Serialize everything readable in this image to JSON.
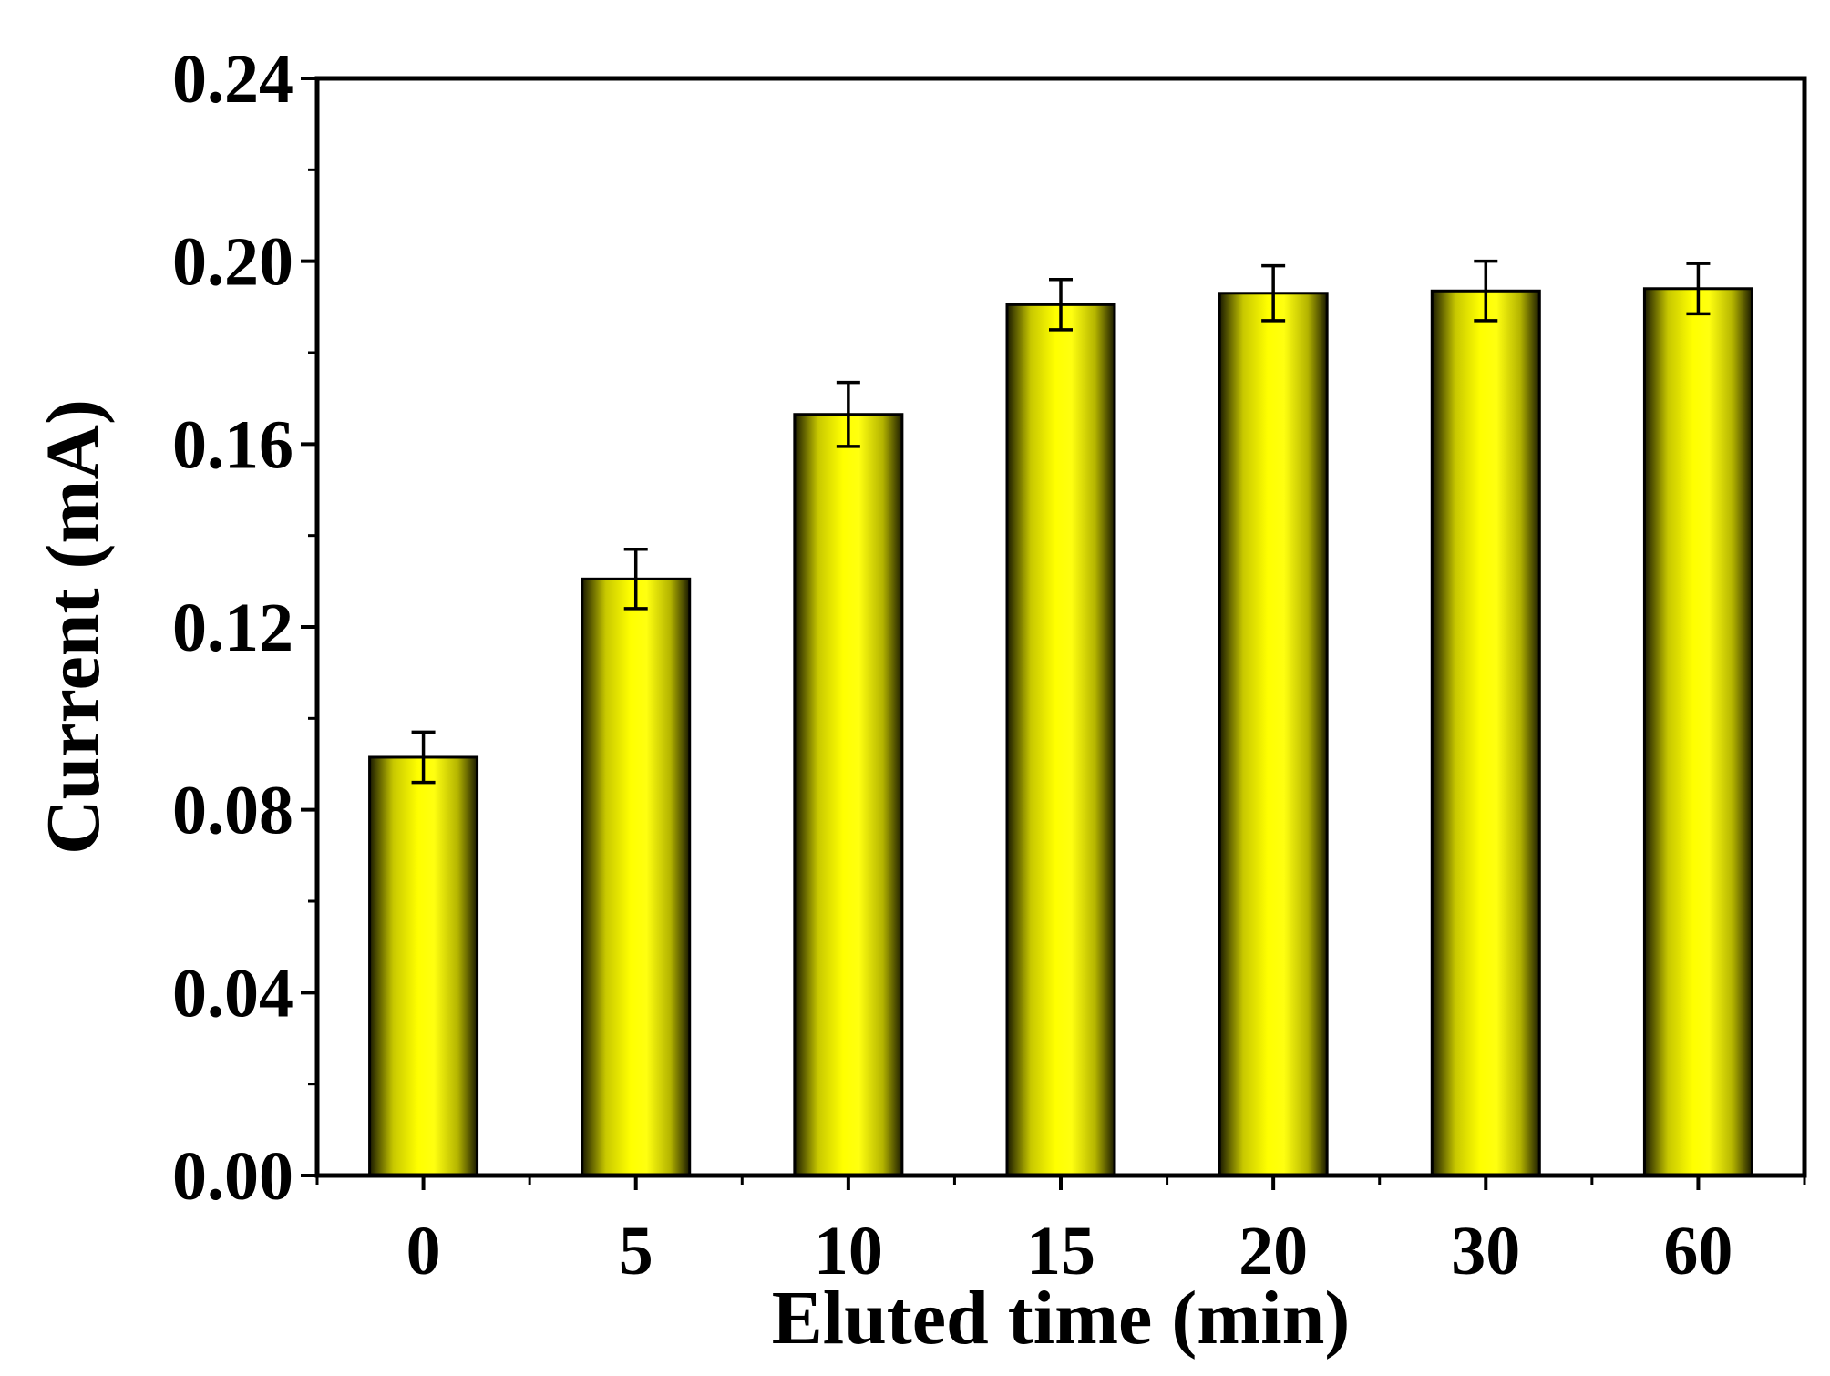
{
  "chart_data": {
    "type": "bar",
    "categories": [
      "0",
      "5",
      "10",
      "15",
      "20",
      "30",
      "60"
    ],
    "values": [
      0.0915,
      0.1305,
      0.1665,
      0.1905,
      0.193,
      0.1935,
      0.194
    ],
    "error": [
      0.0055,
      0.0065,
      0.007,
      0.0055,
      0.006,
      0.0065,
      0.0055
    ],
    "xlabel": "Eluted time (min)",
    "ylabel": "Current (mA)",
    "ylim": [
      0,
      0.24
    ],
    "yticks": [
      "0.00",
      "0.04",
      "0.08",
      "0.12",
      "0.16",
      "0.20",
      "0.24"
    ],
    "grid": false,
    "colors": {
      "bar_light": "#ffff00",
      "bar_dark": "#1a1a00",
      "axis": "#000000"
    }
  }
}
